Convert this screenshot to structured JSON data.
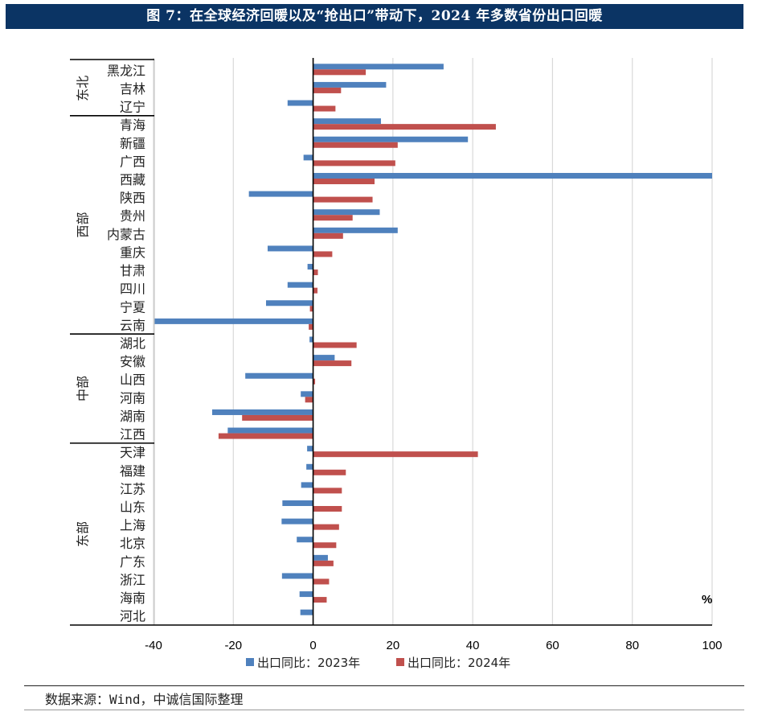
{
  "title": "图 7：在全球经济回暖以及“抢出口”带动下，2024 年多数省份出口回暖",
  "source": "数据来源：Wind，中诚信国际整理",
  "colors": {
    "series_2023": "#4f81bd",
    "series_2024": "#c0504d",
    "title_bg": "#0b3464"
  },
  "chart_data": {
    "type": "bar",
    "orientation": "horizontal",
    "title": "图 7：在全球经济回暖以及“抢出口”带动下，2024 年多数省份出口回暖",
    "unit_label": "%",
    "xlim": [
      -40,
      100
    ],
    "xticks": [
      -40,
      -20,
      0,
      20,
      40,
      60,
      80,
      100
    ],
    "grid": true,
    "legend_position": "bottom",
    "groups": [
      {
        "name": "东北",
        "categories": [
          "黑龙江",
          "吉林",
          "辽宁"
        ]
      },
      {
        "name": "西部",
        "categories": [
          "青海",
          "新疆",
          "广西",
          "西藏",
          "陕西",
          "贵州",
          "内蒙古",
          "重庆",
          "甘肃",
          "四川",
          "宁夏",
          "云南"
        ]
      },
      {
        "name": "中部",
        "categories": [
          "湖北",
          "安徽",
          "山西",
          "河南",
          "湖南",
          "江西"
        ]
      },
      {
        "name": "东部",
        "categories": [
          "天津",
          "福建",
          "江苏",
          "山东",
          "上海",
          "北京",
          "广东",
          "浙江",
          "海南",
          "河北"
        ]
      }
    ],
    "categories": [
      "黑龙江",
      "吉林",
      "辽宁",
      "青海",
      "新疆",
      "广西",
      "西藏",
      "陕西",
      "贵州",
      "内蒙古",
      "重庆",
      "甘肃",
      "四川",
      "宁夏",
      "云南",
      "湖北",
      "安徽",
      "山西",
      "河南",
      "湖南",
      "江西",
      "天津",
      "福建",
      "江苏",
      "山东",
      "上海",
      "北京",
      "广东",
      "浙江",
      "海南",
      "河北"
    ],
    "series": [
      {
        "name": "出口同比：2023年",
        "color": "#4f81bd",
        "values": [
          32.7,
          18.3,
          -6.4,
          17.0,
          38.8,
          -2.4,
          100,
          -16.1,
          16.7,
          21.2,
          -11.4,
          -1.4,
          -6.4,
          -11.8,
          -39.7,
          -0.9,
          5.4,
          -17.0,
          -3.1,
          -25.3,
          -21.4,
          -1.5,
          -1.7,
          -3.0,
          -7.7,
          -7.9,
          -4.1,
          3.7,
          -7.8,
          -3.4,
          -3.2
        ]
      },
      {
        "name": "出口同比：2024年",
        "color": "#c0504d",
        "values": [
          13.2,
          7.0,
          5.6,
          45.8,
          21.2,
          20.6,
          15.4,
          14.9,
          9.9,
          7.5,
          4.8,
          1.2,
          1.1,
          -0.8,
          -1.1,
          10.9,
          9.6,
          0.5,
          -2.0,
          -17.8,
          -23.7,
          41.3,
          8.2,
          7.2,
          7.2,
          6.5,
          5.8,
          5.1,
          4.0,
          3.4,
          0
        ]
      }
    ]
  }
}
